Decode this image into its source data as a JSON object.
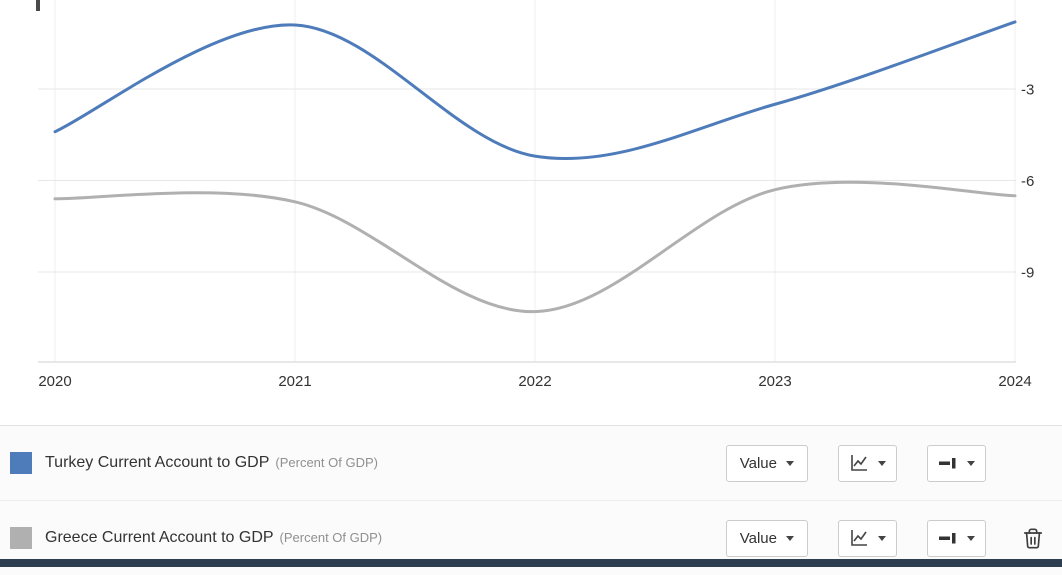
{
  "chart_data": {
    "type": "line",
    "title": "",
    "x": [
      2020,
      2021,
      2022,
      2023,
      2024
    ],
    "x_tick_labels": [
      "2020",
      "2021",
      "2022",
      "2023",
      "2024"
    ],
    "y_ticks": [
      -3,
      -6,
      -9
    ],
    "y_tick_labels": [
      "-3",
      "-6",
      "-9"
    ],
    "ylim": [
      -12,
      0
    ],
    "grid": true,
    "y_axis_side": "right",
    "legend_position": "bottom",
    "series": [
      {
        "name": "Turkey Current Account to GDP",
        "units": "Percent Of GDP",
        "color": "#4e7cbb",
        "values": [
          -4.4,
          -0.9,
          -5.2,
          -3.5,
          -0.8
        ]
      },
      {
        "name": "Greece Current Account to GDP",
        "units": "Percent Of GDP",
        "color": "#b0b0b0",
        "values": [
          -6.6,
          -6.7,
          -10.3,
          -6.3,
          -6.5
        ]
      }
    ]
  },
  "legend": {
    "rows": [
      {
        "title": "Turkey Current Account to GDP",
        "subtitle": "(Percent Of GDP)",
        "value_label": "Value",
        "swatch_color": "#4e7cbb",
        "has_delete": false
      },
      {
        "title": "Greece Current Account to GDP",
        "subtitle": "(Percent Of GDP)",
        "value_label": "Value",
        "swatch_color": "#b0b0b0",
        "has_delete": true
      }
    ]
  }
}
